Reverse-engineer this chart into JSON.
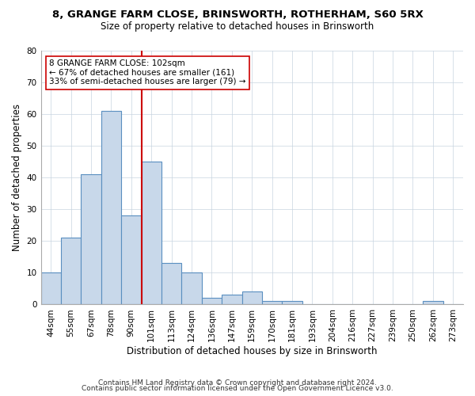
{
  "title1": "8, GRANGE FARM CLOSE, BRINSWORTH, ROTHERHAM, S60 5RX",
  "title2": "Size of property relative to detached houses in Brinsworth",
  "xlabel": "Distribution of detached houses by size in Brinsworth",
  "ylabel": "Number of detached properties",
  "categories": [
    "44sqm",
    "55sqm",
    "67sqm",
    "78sqm",
    "90sqm",
    "101sqm",
    "113sqm",
    "124sqm",
    "136sqm",
    "147sqm",
    "159sqm",
    "170sqm",
    "181sqm",
    "193sqm",
    "204sqm",
    "216sqm",
    "227sqm",
    "239sqm",
    "250sqm",
    "262sqm",
    "273sqm"
  ],
  "values": [
    10,
    21,
    41,
    61,
    28,
    45,
    13,
    10,
    2,
    3,
    4,
    1,
    1,
    0,
    0,
    0,
    0,
    0,
    0,
    1,
    0
  ],
  "bar_color": "#c8d8ea",
  "bar_edge_color": "#5a8fc0",
  "bar_lw": 0.8,
  "vline_x_idx": 5,
  "vline_color": "#cc0000",
  "vline_lw": 1.5,
  "annotation_line1": "8 GRANGE FARM CLOSE: 102sqm",
  "annotation_line2": "← 67% of detached houses are smaller (161)",
  "annotation_line3": "33% of semi-detached houses are larger (79) →",
  "annotation_box_color": "#cc0000",
  "ylim": [
    0,
    80
  ],
  "yticks": [
    0,
    10,
    20,
    30,
    40,
    50,
    60,
    70,
    80
  ],
  "background_color": "#ffffff",
  "grid_color": "#c8d4e0",
  "footer1": "Contains HM Land Registry data © Crown copyright and database right 2024.",
  "footer2": "Contains public sector information licensed under the Open Government Licence v3.0.",
  "title1_fontsize": 9.5,
  "title2_fontsize": 8.5,
  "axis_label_fontsize": 8.5,
  "tick_fontsize": 7.5,
  "annotation_fontsize": 7.5,
  "footer_fontsize": 6.5
}
